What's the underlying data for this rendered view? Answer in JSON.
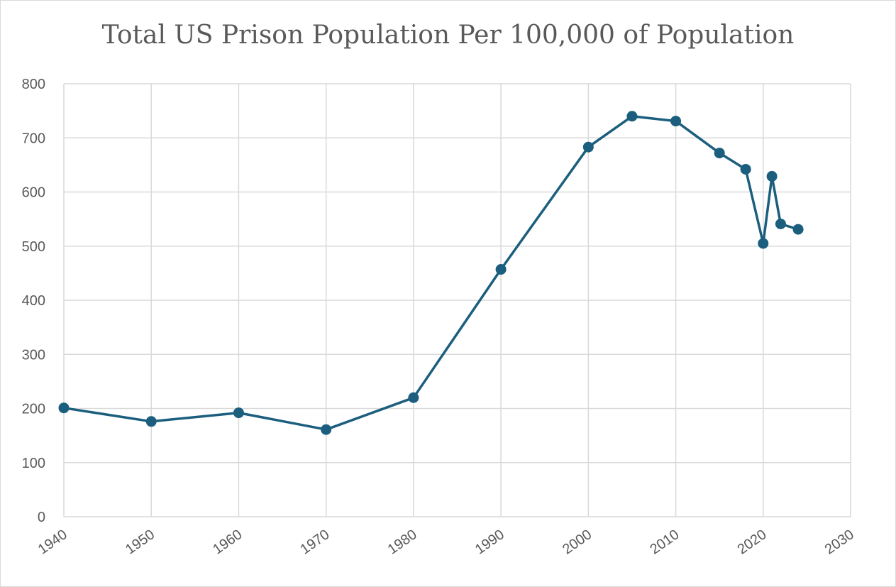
{
  "chart_data": {
    "type": "scatter",
    "style": "line-with-markers",
    "title": "Total US Prison Population Per 100,000 of Population",
    "xlabel": "",
    "ylabel": "",
    "xlim": [
      1940,
      2030
    ],
    "ylim": [
      0,
      800
    ],
    "x_ticks": [
      1940,
      1950,
      1960,
      1970,
      1980,
      1990,
      2000,
      2010,
      2020,
      2030
    ],
    "y_ticks": [
      0,
      100,
      200,
      300,
      400,
      500,
      600,
      700,
      800
    ],
    "grid": true,
    "legend": "none",
    "series": [
      {
        "color": "#1b5e7e",
        "x": [
          1940,
          1950,
          1960,
          1970,
          1980,
          1990,
          2000,
          2005,
          2010,
          2015,
          2018,
          2020,
          2021,
          2022,
          2024
        ],
        "y": [
          201,
          176,
          192,
          161,
          220,
          457,
          683,
          740,
          731,
          672,
          642,
          505,
          629,
          541,
          531
        ]
      }
    ]
  }
}
